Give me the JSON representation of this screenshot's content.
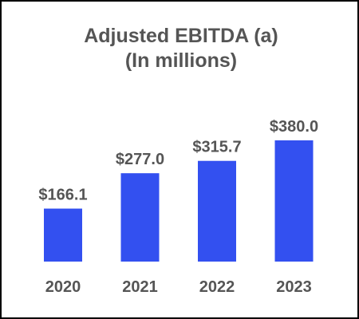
{
  "colors": {
    "bar": "#3350f0",
    "text": "#555555",
    "border": "#000000",
    "background": "#ffffff"
  },
  "chart_data": {
    "type": "bar",
    "title": "Adjusted EBITDA (a)",
    "subtitle": "(In millions)",
    "categories": [
      "2020",
      "2021",
      "2022",
      "2023"
    ],
    "values": [
      166.1,
      277.0,
      315.7,
      380.0
    ],
    "data_labels": [
      "$166.1",
      "$277.0",
      "$315.7",
      "$380.0"
    ],
    "xlabel": "",
    "ylabel": "",
    "ylim": [
      0,
      400
    ],
    "grid": false,
    "legend": "none"
  }
}
